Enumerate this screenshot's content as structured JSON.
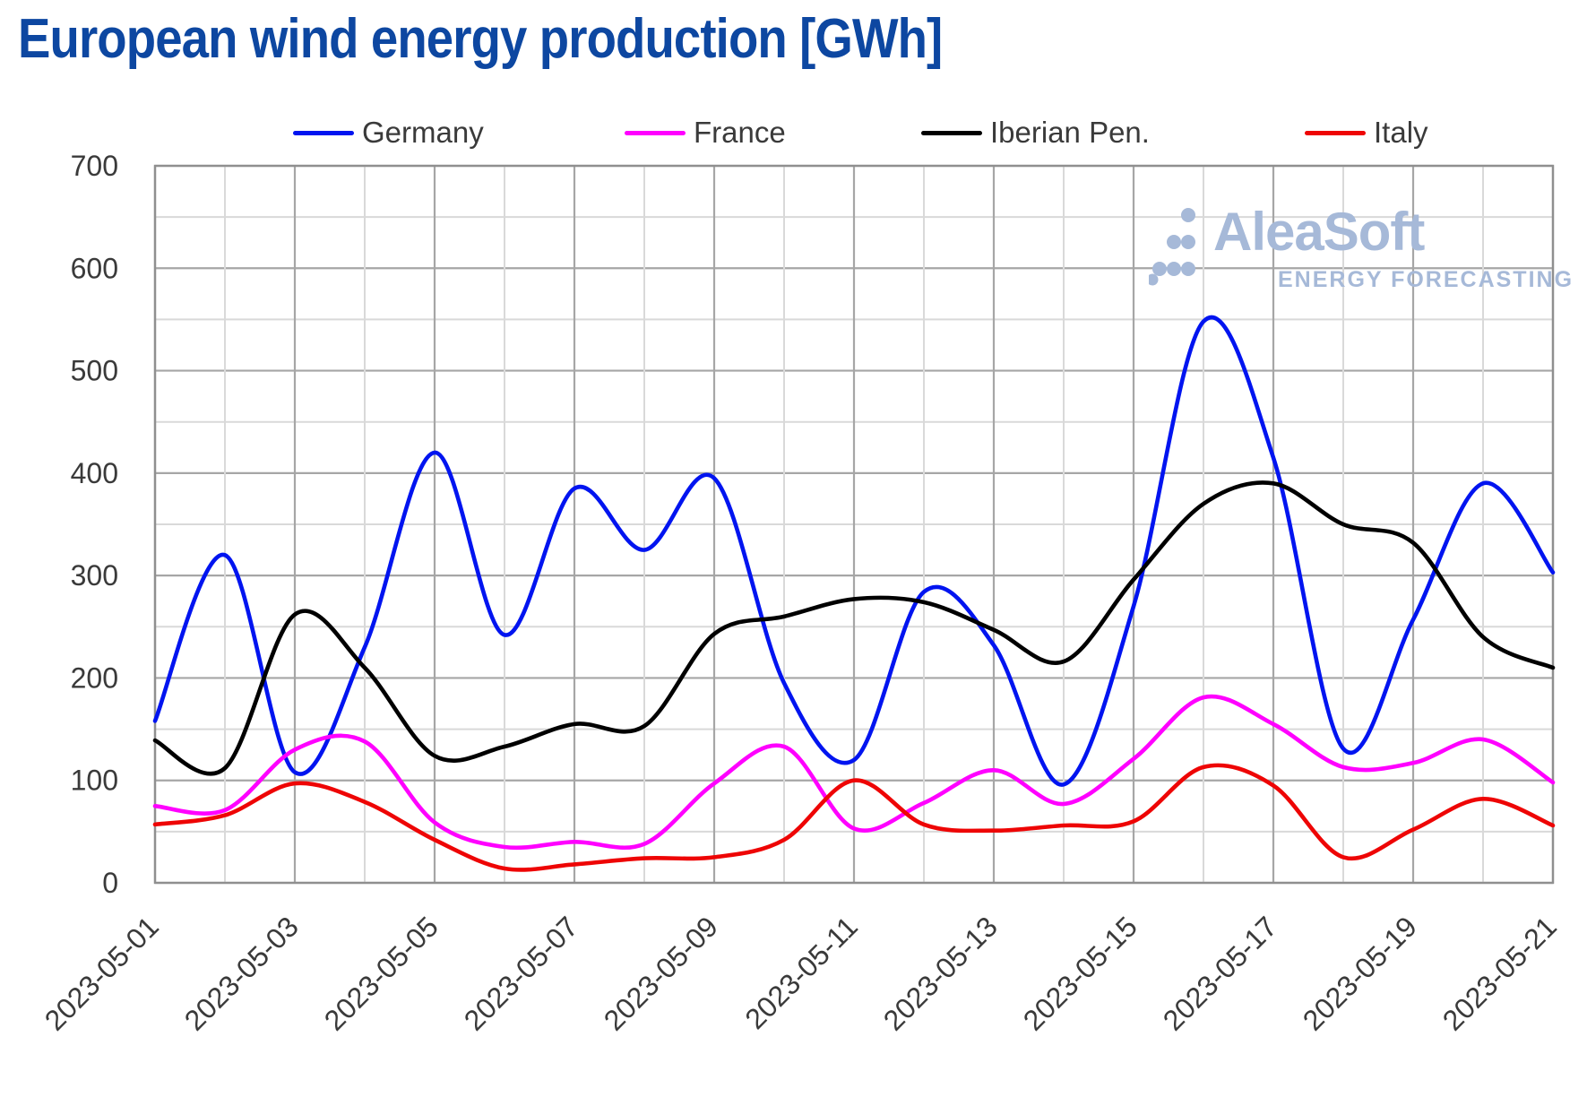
{
  "title": "European wind energy production [GWh]",
  "watermark": {
    "brand": "AleaSoft",
    "tagline": "ENERGY FORECASTING"
  },
  "palette": {
    "title_color": "#0d47a1",
    "tick_color": "#3a3a3a",
    "grid_minor": "#d9d9d9",
    "grid_major": "#a6a6a6",
    "frame": "#8f8f8f",
    "logo_color": "#a6b9d8",
    "background": "#ffffff"
  },
  "axes": {
    "ylim": [
      0,
      700
    ],
    "y_major_step": 100,
    "y_minor_step": 50,
    "y_tick_labels": [
      "0",
      "100",
      "200",
      "300",
      "400",
      "500",
      "600",
      "700"
    ],
    "x_tick_labels": [
      "2023-05-01",
      "2023-05-03",
      "2023-05-05",
      "2023-05-07",
      "2023-05-09",
      "2023-05-11",
      "2023-05-13",
      "2023-05-15",
      "2023-05-17",
      "2023-05-19",
      "2023-05-21"
    ],
    "x_label_rotation_deg": -45,
    "grid": true
  },
  "chart_data": {
    "type": "line",
    "title": "European wind energy production [GWh]",
    "xlabel": "",
    "ylabel": "",
    "ylim": [
      0,
      700
    ],
    "legend_position": "top",
    "x": [
      "2023-05-01",
      "2023-05-02",
      "2023-05-03",
      "2023-05-04",
      "2023-05-05",
      "2023-05-06",
      "2023-05-07",
      "2023-05-08",
      "2023-05-09",
      "2023-05-10",
      "2023-05-11",
      "2023-05-12",
      "2023-05-13",
      "2023-05-14",
      "2023-05-15",
      "2023-05-16",
      "2023-05-17",
      "2023-05-18",
      "2023-05-19",
      "2023-05-20",
      "2023-05-21"
    ],
    "series": [
      {
        "name": "Germany",
        "color": "#0014f0",
        "values": [
          158,
          320,
          108,
          230,
          420,
          242,
          385,
          325,
          395,
          195,
          120,
          284,
          232,
          96,
          270,
          548,
          415,
          131,
          257,
          390,
          303
        ]
      },
      {
        "name": "France",
        "color": "#ff00ff",
        "values": [
          75,
          71,
          130,
          138,
          59,
          35,
          40,
          38,
          97,
          133,
          53,
          78,
          110,
          77,
          121,
          181,
          155,
          113,
          117,
          140,
          98
        ]
      },
      {
        "name": "Iberian Pen.",
        "color": "#000000",
        "values": [
          139,
          112,
          262,
          210,
          124,
          133,
          155,
          153,
          243,
          260,
          277,
          274,
          247,
          216,
          296,
          370,
          390,
          350,
          332,
          240,
          210
        ]
      },
      {
        "name": "Italy",
        "color": "#ee0505",
        "values": [
          57,
          66,
          97,
          79,
          42,
          14,
          18,
          24,
          25,
          42,
          100,
          57,
          51,
          56,
          60,
          113,
          95,
          25,
          52,
          82,
          56
        ]
      }
    ]
  }
}
